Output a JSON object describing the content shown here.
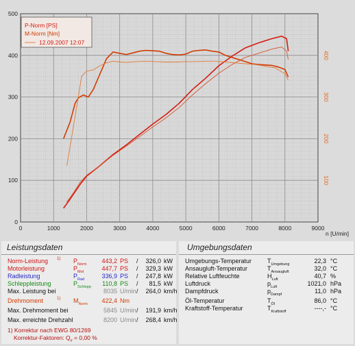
{
  "chart_data": {
    "type": "line",
    "xlabel": "n [U/min]",
    "xlim": [
      0,
      9000
    ],
    "x_ticks": [
      "0",
      "1000",
      "2000",
      "3000",
      "4000",
      "5000",
      "6000",
      "7000",
      "8000",
      "9000"
    ],
    "ylim_left": [
      0,
      500
    ],
    "y_ticks_left": [
      "0",
      "100",
      "200",
      "300",
      "400",
      "500"
    ],
    "ylim_right": [
      0,
      500
    ],
    "y_ticks_right": [
      "100",
      "200",
      "300",
      "400"
    ],
    "grid": true,
    "legend": [
      "P-Norm [PS]",
      "M-Norm [Nm]",
      "12.09.2007 12:07"
    ],
    "legend_position": "top-left",
    "series": [
      {
        "name": "P-Norm [PS]",
        "color": "#d41b10",
        "width": 1.6,
        "x": [
          1300,
          1500,
          1800,
          2000,
          2400,
          2800,
          3200,
          3600,
          4000,
          4400,
          4800,
          5200,
          5600,
          6000,
          6400,
          6800,
          7200,
          7600,
          7900,
          8050,
          8100
        ],
        "y": [
          33,
          55,
          90,
          110,
          135,
          162,
          185,
          210,
          235,
          258,
          285,
          318,
          345,
          375,
          398,
          418,
          430,
          440,
          446,
          440,
          410
        ]
      },
      {
        "name": "",
        "color": "#d8542e",
        "width": 0.9,
        "x": [
          1400,
          1600,
          1800,
          2000,
          2400,
          2800,
          3200,
          3600,
          4000,
          4400,
          4800,
          5200,
          5600,
          6000,
          6400,
          6800,
          7200,
          7600,
          7900,
          8050,
          8100
        ],
        "y": [
          48,
          70,
          95,
          112,
          135,
          160,
          182,
          205,
          228,
          250,
          275,
          305,
          332,
          357,
          378,
          395,
          405,
          415,
          420,
          410,
          390
        ]
      },
      {
        "name": "M-Norm [Nm]",
        "color": "#d13a00",
        "width": 1.6,
        "x": [
          1300,
          1500,
          1650,
          1750,
          1900,
          2050,
          2200,
          2400,
          2600,
          2800,
          3000,
          3200,
          3400,
          3600,
          3800,
          4000,
          4200,
          4400,
          4600,
          4800,
          5000,
          5200,
          5400,
          5600,
          5800,
          6000,
          6200,
          6400,
          6600,
          6800,
          7000,
          7200,
          7400,
          7600,
          7800,
          8000,
          8100
        ],
        "y": [
          200,
          240,
          285,
          298,
          305,
          300,
          318,
          355,
          392,
          408,
          405,
          402,
          406,
          410,
          412,
          411,
          410,
          405,
          402,
          401,
          403,
          410,
          412,
          413,
          410,
          408,
          400,
          395,
          390,
          385,
          380,
          378,
          377,
          376,
          372,
          366,
          348
        ]
      },
      {
        "name": "",
        "color": "#e07a35",
        "width": 0.9,
        "x": [
          1400,
          1550,
          1700,
          1850,
          2000,
          2200,
          2400,
          2600,
          2800,
          3000,
          3200,
          3500,
          3800,
          4100,
          4400,
          4700,
          5000,
          5300,
          5600,
          5900,
          6200,
          6500,
          6800,
          7100,
          7400,
          7700,
          8000,
          8100
        ],
        "y": [
          135,
          205,
          278,
          350,
          362,
          365,
          375,
          382,
          386,
          384,
          383,
          385,
          386,
          385,
          384,
          384,
          385,
          385,
          386,
          386,
          384,
          382,
          380,
          378,
          374,
          370,
          356,
          340
        ]
      }
    ]
  },
  "left_panel": {
    "title": "Leistungsdaten",
    "rows": [
      {
        "label": "Norm-Leistung",
        "mark": "1)",
        "sym": "P",
        "sub": "Norm",
        "v1": "443,2",
        "u1": "PS",
        "sep": "/",
        "v2": "326,0",
        "u2": "kW"
      },
      {
        "label": "Motorleistung",
        "mark": "",
        "sym": "P",
        "sub": "Mot",
        "v1": "447,7",
        "u1": "PS",
        "sep": "/",
        "v2": "329,3",
        "u2": "kW"
      },
      {
        "label": "Radleistung",
        "mark": "",
        "sym": "P",
        "sub": "Rad",
        "v1": "336,9",
        "u1": "PS",
        "sep": "/",
        "v2": "247,8",
        "u2": "kW"
      },
      {
        "label": "Schleppleistung",
        "mark": "",
        "sym": "P",
        "sub": "Schlepp",
        "v1": "110,8",
        "u1": "PS",
        "sep": "/",
        "v2": "81,5",
        "u2": "kW"
      },
      {
        "label": "Max. Leistung bei",
        "mark": "",
        "sym": "",
        "sub": "",
        "v1": "8035",
        "u1": "U/min",
        "sep": "/",
        "v2": "264,0",
        "u2": "km/h"
      },
      {
        "label": "Drehmoment",
        "mark": "1)",
        "sym": "M",
        "sub": "Norm",
        "v1": "422,4",
        "u1": "Nm",
        "sep": "",
        "v2": "",
        "u2": ""
      },
      {
        "label": "Max. Drehmoment bei",
        "mark": "",
        "sym": "",
        "sub": "",
        "v1": "5845",
        "u1": "U/min",
        "sep": "/",
        "v2": "191,9",
        "u2": "km/h"
      },
      {
        "label": "Max. erreichte Drehzahl",
        "mark": "",
        "sym": "",
        "sub": "",
        "v1": "8200",
        "u1": "U/min",
        "sep": "/",
        "v2": "268,4",
        "u2": "km/h"
      }
    ],
    "note1": "1) Korrektur nach EWG 80/1269",
    "note2_prefix": "Korrektur-Faktoren: Q",
    "note2_sub": "v",
    "note2_rest": " =   0,00 %"
  },
  "right_panel": {
    "title": "Umgebungsdaten",
    "rows": [
      {
        "label": "Umgebungs-Temperatur",
        "sym": "T",
        "sub": "Umgebung",
        "val": "22,3",
        "unit": "°C"
      },
      {
        "label": "Ansaugluft-Temperatur",
        "sym": "T",
        "sub": "Ansaugluft",
        "val": "32,0",
        "unit": "°C"
      },
      {
        "label": "Relative Luftfeuchte",
        "sym": "H",
        "sub": "Luft",
        "val": "40,7",
        "unit": "%"
      },
      {
        "label": "Luftdruck",
        "sym": "p",
        "sub": "Luft",
        "val": "1021,0",
        "unit": "hPa"
      },
      {
        "label": "Dampfdruck",
        "sym": "p",
        "sub": "Dampf",
        "val": "11,0",
        "unit": "hPa"
      },
      {
        "label": "Öl-Temperatur",
        "sym": "T",
        "sub": "Öl",
        "val": "86,0",
        "unit": "°C"
      },
      {
        "label": "Kraftstoff-Temperatur",
        "sym": "T",
        "sub": "Kraftstoff",
        "val": "----,-",
        "unit": "°C"
      }
    ]
  }
}
